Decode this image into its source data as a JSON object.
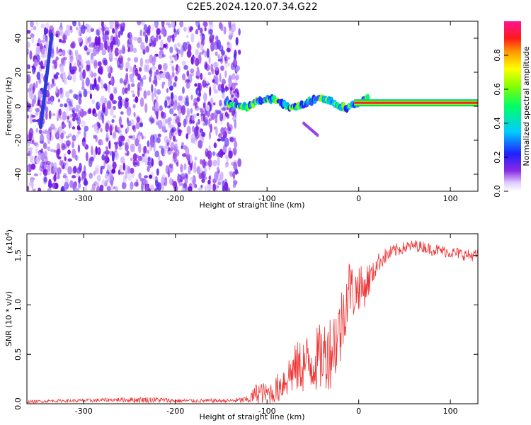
{
  "title": "C2E5.2024.120.07.34.G22",
  "colors": {
    "snr_line": "#ee3333",
    "axis": "#000000",
    "background": "#ffffff"
  },
  "chart_data": [
    {
      "type": "heatmap",
      "xlabel": "Height of straight line (km)",
      "ylabel": "Frequency (Hz)",
      "xlim": [
        -362,
        130
      ],
      "ylim": [
        -50,
        50
      ],
      "xticks": [
        -300,
        -200,
        -100,
        0,
        100
      ],
      "xtick_labels": [
        "-300",
        "-200",
        "-100",
        "0",
        "100"
      ],
      "yticks": [
        -40,
        -20,
        0,
        20,
        40
      ],
      "ytick_labels": [
        "-40",
        "-20",
        "0",
        "20",
        "40"
      ],
      "colorbar": {
        "label": "Normalized spectral amplitude",
        "range": [
          0,
          1
        ],
        "ticks": [
          0.0,
          0.2,
          0.4,
          0.6,
          0.8
        ],
        "tick_labels": [
          "0.0",
          "0.2",
          "0.4",
          "0.6",
          "0.8"
        ],
        "colormap": "rainbow (white-purple-blue-cyan-green-yellow-red-magenta)"
      },
      "features": {
        "noise_region_x": [
          -362,
          -130
        ],
        "signal_band_center_hz": 2,
        "signal_band_start_x": -145,
        "steady_tone_start_x": 10,
        "streak": {
          "x": [
            -347,
            -335
          ],
          "y": [
            -12,
            42
          ]
        },
        "tail": {
          "x": [
            -60,
            -45
          ],
          "y": [
            -10,
            -17
          ]
        }
      }
    },
    {
      "type": "line",
      "xlabel": "Height of straight line (km)",
      "ylabel": "SNR (10 * v/v)",
      "scale_label": "(x10",
      "scale_exponent": "4",
      "scale_suffix": ")",
      "xlim": [
        -362,
        130
      ],
      "ylim": [
        0,
        1.72
      ],
      "xticks": [
        -300,
        -200,
        -100,
        0,
        100
      ],
      "xtick_labels": [
        "-300",
        "-200",
        "-100",
        "0",
        "100"
      ],
      "yticks": [
        0.0,
        0.5,
        1.0,
        1.5
      ],
      "ytick_labels": [
        "0.0",
        "0.5",
        "1.0",
        "1.5"
      ],
      "series": [
        {
          "x": [
            -362,
            -330,
            -300,
            -270,
            -240,
            -220,
            -200,
            -180,
            -160,
            -140,
            -120,
            -110,
            -100,
            -90,
            -80,
            -70,
            -60,
            -50,
            -40,
            -30,
            -25,
            -20,
            -15,
            -10,
            -5,
            0,
            5,
            10,
            15,
            20,
            30,
            40,
            50,
            60,
            70,
            80,
            90,
            100,
            110,
            120,
            130
          ],
          "values": [
            0.02,
            0.03,
            0.03,
            0.04,
            0.04,
            0.04,
            0.03,
            0.03,
            0.03,
            0.03,
            0.04,
            0.12,
            0.1,
            0.14,
            0.25,
            0.35,
            0.4,
            0.42,
            0.48,
            0.55,
            0.65,
            0.75,
            1.0,
            1.2,
            1.1,
            1.2,
            1.15,
            1.25,
            1.3,
            1.42,
            1.5,
            1.55,
            1.58,
            1.6,
            1.59,
            1.56,
            1.55,
            1.53,
            1.52,
            1.5,
            1.5
          ],
          "noise_band": [
            0.015,
            0.015,
            0.02,
            0.02,
            0.03,
            0.03,
            0.02,
            0.02,
            0.02,
            0.02,
            0.04,
            0.12,
            0.1,
            0.15,
            0.2,
            0.25,
            0.3,
            0.32,
            0.35,
            0.4,
            0.4,
            0.4,
            0.35,
            0.3,
            0.25,
            0.25,
            0.2,
            0.2,
            0.12,
            0.1,
            0.08,
            0.07,
            0.06,
            0.06,
            0.06,
            0.06,
            0.06,
            0.06,
            0.06,
            0.06,
            0.06
          ]
        }
      ]
    }
  ]
}
